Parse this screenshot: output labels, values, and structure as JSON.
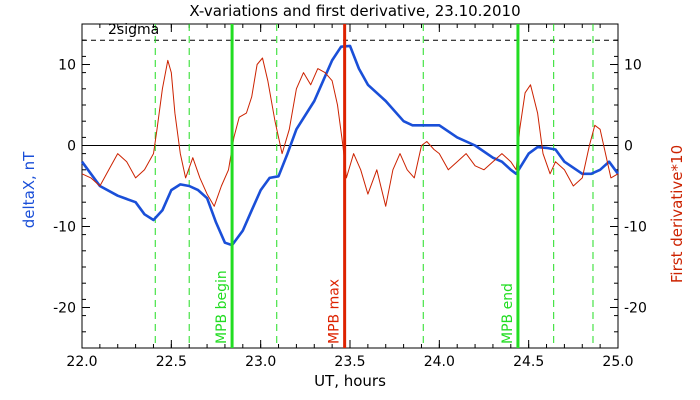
{
  "chart_data": {
    "type": "line",
    "title": "X-variations and first derivative, 23.10.2010",
    "xlabel": "UT, hours",
    "ylabel_left": "deltaX, nT",
    "ylabel_right": "First derivative*10",
    "xlim": [
      22.0,
      25.0
    ],
    "ylim": [
      -25,
      15
    ],
    "x_ticks": [
      22.0,
      22.5,
      23.0,
      23.5,
      24.0,
      24.5,
      25.0
    ],
    "x_tick_labels": [
      "22.0",
      "22.5",
      "23.0",
      "23.5",
      "24.0",
      "24.5",
      "25.0"
    ],
    "y_ticks": [
      -20,
      -10,
      0,
      10
    ],
    "y_tick_labels": [
      "-20",
      "-10",
      "0",
      "10"
    ],
    "sigma_level": 13,
    "sigma_label": "2sigma",
    "grid": false,
    "colors": {
      "deltaX": "#1a4fd8",
      "derivative": "#cc2200",
      "markers_green": "#22dd22",
      "marker_max": "#dd2200",
      "ylabel_left": "#1a4fd8",
      "ylabel_right": "#cc2200"
    },
    "series": [
      {
        "key": "deltaX",
        "values": [
          [
            22.0,
            -2
          ],
          [
            22.05,
            -3.5
          ],
          [
            22.1,
            -5
          ],
          [
            22.2,
            -6.2
          ],
          [
            22.3,
            -7
          ],
          [
            22.35,
            -8.5
          ],
          [
            22.4,
            -9.2
          ],
          [
            22.45,
            -8
          ],
          [
            22.5,
            -5.5
          ],
          [
            22.55,
            -4.8
          ],
          [
            22.6,
            -5
          ],
          [
            22.65,
            -5.5
          ],
          [
            22.7,
            -6.5
          ],
          [
            22.75,
            -9.5
          ],
          [
            22.8,
            -12
          ],
          [
            22.84,
            -12.3
          ],
          [
            22.9,
            -10.5
          ],
          [
            22.95,
            -8
          ],
          [
            23.0,
            -5.5
          ],
          [
            23.05,
            -4
          ],
          [
            23.1,
            -3.8
          ],
          [
            23.15,
            -1
          ],
          [
            23.2,
            2
          ],
          [
            23.3,
            5.5
          ],
          [
            23.35,
            8
          ],
          [
            23.4,
            10.5
          ],
          [
            23.45,
            12.2
          ],
          [
            23.5,
            12.3
          ],
          [
            23.55,
            9.5
          ],
          [
            23.6,
            7.5
          ],
          [
            23.7,
            5.5
          ],
          [
            23.8,
            3
          ],
          [
            23.85,
            2.5
          ],
          [
            23.9,
            2.5
          ],
          [
            24.0,
            2.5
          ],
          [
            24.1,
            1
          ],
          [
            24.2,
            0
          ],
          [
            24.3,
            -1.5
          ],
          [
            24.35,
            -2
          ],
          [
            24.4,
            -3
          ],
          [
            24.43,
            -3.5
          ],
          [
            24.5,
            -1
          ],
          [
            24.55,
            -0.2
          ],
          [
            24.6,
            -0.3
          ],
          [
            24.65,
            -0.5
          ],
          [
            24.7,
            -2
          ],
          [
            24.8,
            -3.5
          ],
          [
            24.85,
            -3.5
          ],
          [
            24.9,
            -3
          ],
          [
            24.95,
            -2
          ],
          [
            25.0,
            -3.5
          ]
        ]
      },
      {
        "key": "derivative",
        "values": [
          [
            22.0,
            -3.5
          ],
          [
            22.05,
            -4
          ],
          [
            22.1,
            -5
          ],
          [
            22.15,
            -3
          ],
          [
            22.2,
            -1
          ],
          [
            22.25,
            -2
          ],
          [
            22.3,
            -4
          ],
          [
            22.35,
            -3
          ],
          [
            22.4,
            -1
          ],
          [
            22.42,
            2
          ],
          [
            22.45,
            7
          ],
          [
            22.48,
            10.5
          ],
          [
            22.5,
            9
          ],
          [
            22.52,
            4
          ],
          [
            22.55,
            -1
          ],
          [
            22.58,
            -4
          ],
          [
            22.62,
            -1.5
          ],
          [
            22.66,
            -4
          ],
          [
            22.7,
            -6
          ],
          [
            22.74,
            -7.5
          ],
          [
            22.78,
            -5
          ],
          [
            22.82,
            -3
          ],
          [
            22.85,
            1
          ],
          [
            22.88,
            3.5
          ],
          [
            22.92,
            4
          ],
          [
            22.95,
            6
          ],
          [
            22.98,
            10
          ],
          [
            23.01,
            10.8
          ],
          [
            23.04,
            8
          ],
          [
            23.08,
            3
          ],
          [
            23.12,
            -1
          ],
          [
            23.16,
            2
          ],
          [
            23.2,
            7
          ],
          [
            23.24,
            9
          ],
          [
            23.28,
            7.5
          ],
          [
            23.32,
            9.5
          ],
          [
            23.36,
            9
          ],
          [
            23.4,
            8
          ],
          [
            23.43,
            5
          ],
          [
            23.46,
            0
          ],
          [
            23.48,
            -4
          ],
          [
            23.52,
            -1
          ],
          [
            23.56,
            -3
          ],
          [
            23.6,
            -6
          ],
          [
            23.65,
            -3
          ],
          [
            23.7,
            -7.5
          ],
          [
            23.74,
            -3
          ],
          [
            23.78,
            -1
          ],
          [
            23.82,
            -3
          ],
          [
            23.86,
            -4
          ],
          [
            23.9,
            0
          ],
          [
            23.93,
            0.5
          ],
          [
            23.97,
            -0.5
          ],
          [
            24.0,
            -1
          ],
          [
            24.05,
            -3
          ],
          [
            24.1,
            -2
          ],
          [
            24.15,
            -1
          ],
          [
            24.2,
            -2.5
          ],
          [
            24.25,
            -3
          ],
          [
            24.3,
            -2
          ],
          [
            24.35,
            -1
          ],
          [
            24.4,
            -2
          ],
          [
            24.43,
            -3
          ],
          [
            24.45,
            2
          ],
          [
            24.48,
            6.5
          ],
          [
            24.51,
            7.5
          ],
          [
            24.55,
            4
          ],
          [
            24.58,
            -1
          ],
          [
            24.62,
            -3.5
          ],
          [
            24.65,
            -2
          ],
          [
            24.7,
            -3
          ],
          [
            24.75,
            -5
          ],
          [
            24.8,
            -4
          ],
          [
            24.84,
            0
          ],
          [
            24.87,
            2.5
          ],
          [
            24.9,
            2
          ],
          [
            24.93,
            -1
          ],
          [
            24.96,
            -4
          ],
          [
            25.0,
            -3.5
          ]
        ]
      }
    ],
    "marker_lines": [
      {
        "x": 22.84,
        "label": "MPB begin",
        "color": "#22dd22"
      },
      {
        "x": 23.47,
        "label": "MPB max",
        "color": "#dd2200"
      },
      {
        "x": 24.44,
        "label": "MPB end",
        "color": "#22dd22"
      }
    ],
    "dashed_lines": [
      22.41,
      22.6,
      23.09,
      23.91,
      24.64,
      24.86
    ]
  }
}
